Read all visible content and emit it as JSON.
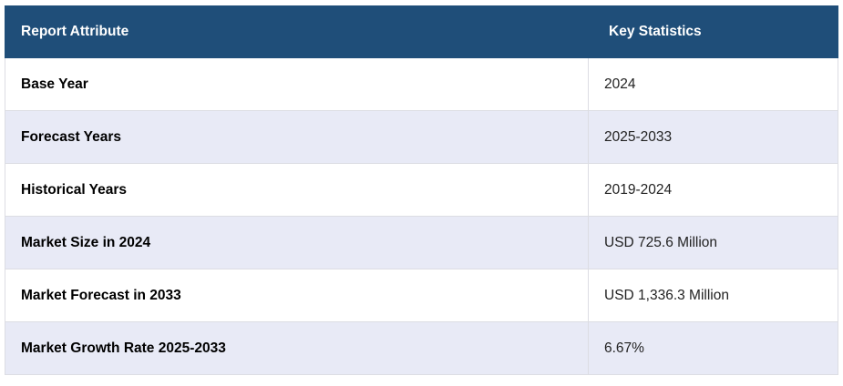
{
  "table": {
    "header": [
      "Report Attribute",
      "Key Statistics"
    ],
    "rows": [
      [
        "Base Year",
        "2024"
      ],
      [
        "Forecast Years",
        "2025-2033"
      ],
      [
        "Historical Years",
        "2019-2024"
      ],
      [
        "Market Size in 2024",
        "USD 725.6 Million"
      ],
      [
        "Market Forecast in 2033",
        "USD 1,336.3 Million"
      ],
      [
        "Market Growth Rate 2025-2033",
        "6.67%"
      ]
    ]
  }
}
